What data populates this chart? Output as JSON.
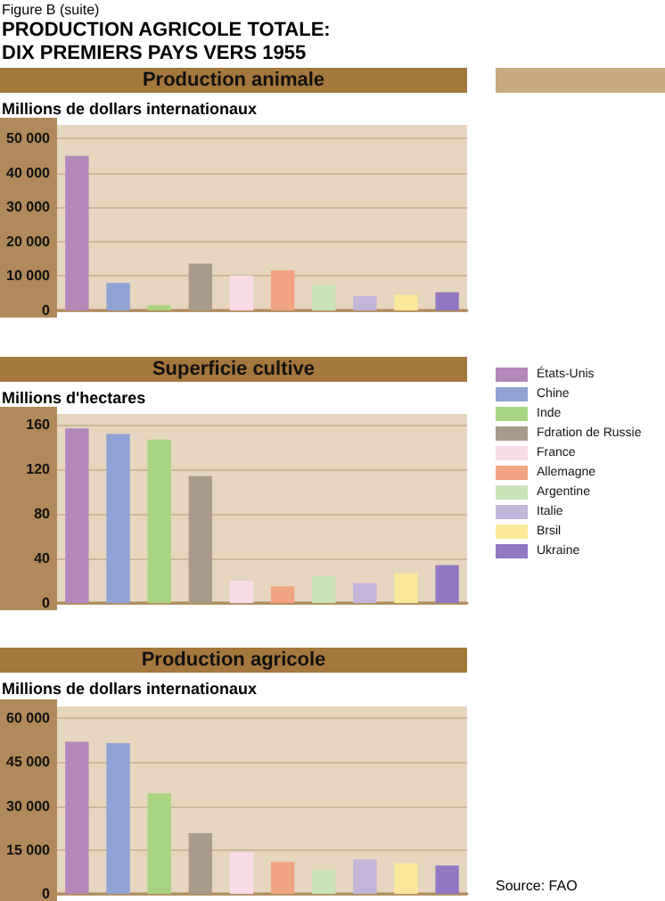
{
  "chart_data": [
    {
      "type": "bar",
      "title": "Production animale",
      "ylabel": "Millions de dollars internationaux",
      "annotations": [
        "Figure B (suite)",
        "PRODUCTION AGRICOLE TOTALE:\nDIX PREMIERS PAYS VERS 1955"
      ],
      "categories": [
        null
      ],
      "series": [
        {
          "color": "#b387b8",
          "values": [
            45000
          ]
        },
        {
          "color": "#8fa3d4",
          "values": [
            8000
          ]
        },
        {
          "color": "#a8d47f",
          "values": [
            1500
          ]
        },
        {
          "color": "#a89b8a",
          "values": [
            13600
          ]
        },
        {
          "color": "#fadce6",
          "values": [
            10100
          ]
        },
        {
          "color": "#f2a482",
          "values": [
            11700
          ]
        },
        {
          "color": "#c8e3b8",
          "values": [
            7400
          ]
        },
        {
          "color": "#c3b4da",
          "values": [
            4200
          ]
        },
        {
          "color": "#fae89a",
          "values": [
            4600
          ]
        },
        {
          "color": "#9178c0",
          "values": [
            5300
          ]
        }
      ],
      "ylim": [
        0,
        54000
      ],
      "yticks": [
        0,
        {
          "value": 10000,
          "label": "10 000"
        },
        {
          "value": 20000,
          "label": "20 000"
        },
        {
          "value": 30000,
          "label": "30 000"
        },
        {
          "value": 40000,
          "label": "40 000"
        },
        {
          "value": 50000,
          "label": "50 000"
        }
      ],
      "grid": "y",
      "legend": false,
      "tick_labels": "y"
    },
    {
      "type": "bar",
      "title": "Superficie cultive",
      "ylabel": "Millions d'hectares",
      "categories": [
        null
      ],
      "series": [
        {
          "name": "États-Unis",
          "color": "#b387b8",
          "values": [
            157
          ]
        },
        {
          "name": "Chine",
          "color": "#8fa3d4",
          "values": [
            152
          ]
        },
        {
          "name": "Inde",
          "color": "#a8d47f",
          "values": [
            147
          ]
        },
        {
          "name": "Fdration de Russie",
          "color": "#a89b8a",
          "values": [
            114
          ]
        },
        {
          "name": "France",
          "color": "#fadce6",
          "values": [
            20
          ]
        },
        {
          "name": "Allemagne",
          "color": "#f2a482",
          "values": [
            15
          ]
        },
        {
          "name": "Argentine",
          "color": "#c8e3b8",
          "values": [
            24
          ]
        },
        {
          "name": "Italie",
          "color": "#c3b4da",
          "values": [
            18
          ]
        },
        {
          "name": "Brsil",
          "color": "#fae89a",
          "values": [
            27
          ]
        },
        {
          "name": "Ukraine",
          "color": "#9178c0",
          "values": [
            34
          ]
        }
      ],
      "ylim": [
        0,
        170
      ],
      "yticks": [
        0,
        40,
        80,
        120,
        160
      ],
      "grid": "y",
      "legend": "right",
      "tick_labels": "y"
    },
    {
      "type": "bar",
      "title": "Production agricole",
      "ylabel": "Millions de dollars internationaux",
      "annotations": [
        "Source: FAO"
      ],
      "categories": [
        null
      ],
      "series": [
        {
          "color": "#b387b8",
          "values": [
            52000
          ]
        },
        {
          "color": "#8fa3d4",
          "values": [
            51500
          ]
        },
        {
          "color": "#a8d47f",
          "values": [
            34400
          ]
        },
        {
          "color": "#a89b8a",
          "values": [
            20700
          ]
        },
        {
          "color": "#fadce6",
          "values": [
            14100
          ]
        },
        {
          "color": "#f2a482",
          "values": [
            10900
          ]
        },
        {
          "color": "#c8e3b8",
          "values": [
            8100
          ]
        },
        {
          "color": "#c3b4da",
          "values": [
            11700
          ]
        },
        {
          "color": "#fae89a",
          "values": [
            10500
          ]
        },
        {
          "color": "#9178c0",
          "values": [
            9700
          ]
        }
      ],
      "ylim": [
        0,
        64000
      ],
      "yticks": [
        0,
        {
          "value": 15000,
          "label": "15 000"
        },
        {
          "value": 30000,
          "label": "30 000"
        },
        {
          "value": 45000,
          "label": "45 000"
        },
        {
          "value": 60000,
          "label": "60 000"
        }
      ],
      "grid": "y",
      "legend": false,
      "tick_labels": "y"
    }
  ]
}
